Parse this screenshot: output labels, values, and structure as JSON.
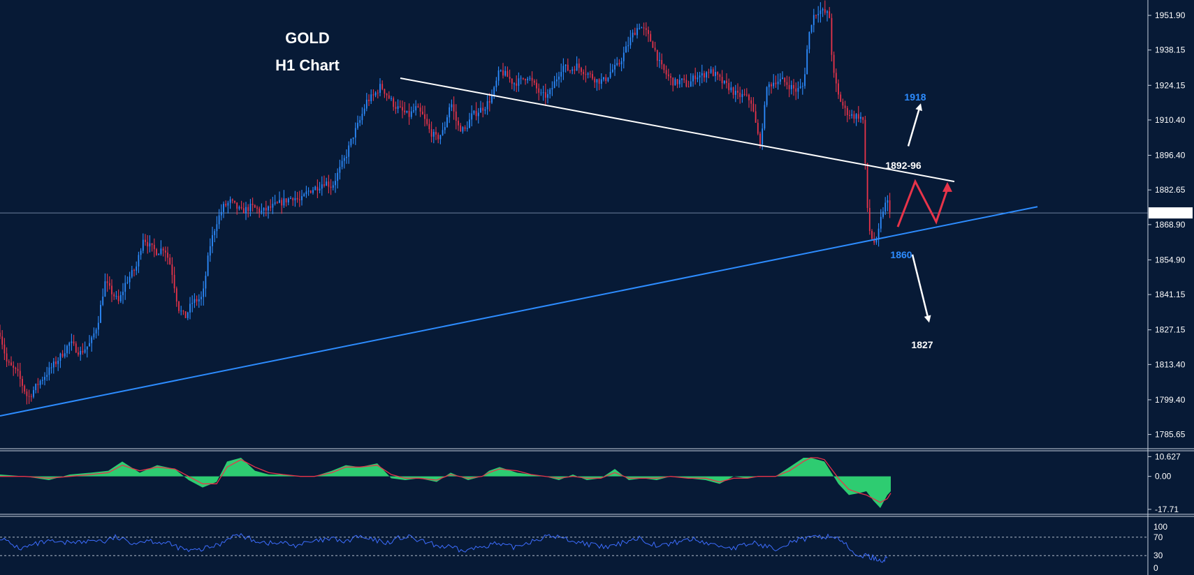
{
  "title": {
    "line1": "GOLD",
    "line2": "H1 Chart"
  },
  "colors": {
    "background": "#071a36",
    "bull_candle": "#2d8cff",
    "bear_candle": "#e8344a",
    "resistance_line": "#ffffff",
    "support_line": "#2d8cff",
    "macd_histogram": "#2ecc71",
    "macd_signal": "#e8344a",
    "rsi_line": "#3d6dff"
  },
  "annotations": {
    "target_up": "1918",
    "resistance_zone": "1892-96",
    "support_level": "1860",
    "target_down": "1827"
  },
  "chart_data": [
    {
      "type": "candlestick",
      "title": "GOLD H1 Chart",
      "y_axis": {
        "ticks": [
          "1951.90",
          "1938.15",
          "1924.15",
          "1910.40",
          "1896.40",
          "1882.65",
          "1868.90",
          "1854.90",
          "1841.15",
          "1827.15",
          "1813.40",
          "1799.40",
          "1785.65"
        ],
        "ylim": [
          1780,
          1958
        ]
      },
      "current_price": "1873.54",
      "x_range": [
        0,
        1275
      ],
      "close_path": [
        [
          0,
          1826
        ],
        [
          10,
          1814
        ],
        [
          25,
          1810
        ],
        [
          40,
          1800
        ],
        [
          55,
          1806
        ],
        [
          70,
          1811
        ],
        [
          85,
          1816
        ],
        [
          100,
          1822
        ],
        [
          115,
          1818
        ],
        [
          130,
          1822
        ],
        [
          140,
          1830
        ],
        [
          150,
          1846
        ],
        [
          160,
          1842
        ],
        [
          170,
          1838
        ],
        [
          180,
          1846
        ],
        [
          195,
          1852
        ],
        [
          205,
          1864
        ],
        [
          215,
          1860
        ],
        [
          225,
          1858
        ],
        [
          235,
          1860
        ],
        [
          245,
          1852
        ],
        [
          255,
          1836
        ],
        [
          265,
          1832
        ],
        [
          275,
          1838
        ],
        [
          290,
          1840
        ],
        [
          300,
          1860
        ],
        [
          310,
          1870
        ],
        [
          320,
          1876
        ],
        [
          330,
          1878
        ],
        [
          345,
          1874
        ],
        [
          360,
          1876
        ],
        [
          375,
          1874
        ],
        [
          390,
          1876
        ],
        [
          405,
          1878
        ],
        [
          420,
          1880
        ],
        [
          430,
          1878
        ],
        [
          440,
          1882
        ],
        [
          455,
          1884
        ],
        [
          465,
          1886
        ],
        [
          475,
          1884
        ],
        [
          485,
          1890
        ],
        [
          495,
          1896
        ],
        [
          505,
          1904
        ],
        [
          515,
          1910
        ],
        [
          525,
          1918
        ],
        [
          535,
          1920
        ],
        [
          545,
          1924
        ],
        [
          555,
          1920
        ],
        [
          565,
          1916
        ],
        [
          575,
          1914
        ],
        [
          585,
          1912
        ],
        [
          595,
          1915
        ],
        [
          605,
          1912
        ],
        [
          615,
          1906
        ],
        [
          625,
          1903
        ],
        [
          635,
          1906
        ],
        [
          645,
          1918
        ],
        [
          655,
          1908
        ],
        [
          665,
          1906
        ],
        [
          675,
          1912
        ],
        [
          685,
          1914
        ],
        [
          695,
          1916
        ],
        [
          705,
          1920
        ],
        [
          715,
          1930
        ],
        [
          725,
          1928
        ],
        [
          735,
          1925
        ],
        [
          745,
          1926
        ],
        [
          755,
          1928
        ],
        [
          765,
          1924
        ],
        [
          775,
          1920
        ],
        [
          785,
          1920
        ],
        [
          795,
          1926
        ],
        [
          805,
          1932
        ],
        [
          815,
          1930
        ],
        [
          825,
          1932
        ],
        [
          835,
          1930
        ],
        [
          845,
          1928
        ],
        [
          855,
          1926
        ],
        [
          865,
          1926
        ],
        [
          875,
          1930
        ],
        [
          885,
          1932
        ],
        [
          895,
          1938
        ],
        [
          905,
          1944
        ],
        [
          915,
          1948
        ],
        [
          925,
          1945
        ],
        [
          935,
          1940
        ],
        [
          945,
          1932
        ],
        [
          955,
          1928
        ],
        [
          965,
          1925
        ],
        [
          975,
          1926
        ],
        [
          985,
          1924
        ],
        [
          995,
          1928
        ],
        [
          1005,
          1928
        ],
        [
          1015,
          1930
        ],
        [
          1025,
          1928
        ],
        [
          1035,
          1925
        ],
        [
          1045,
          1923
        ],
        [
          1055,
          1920
        ],
        [
          1065,
          1920
        ],
        [
          1075,
          1918
        ],
        [
          1085,
          1904
        ],
        [
          1090,
          1901
        ],
        [
          1095,
          1920
        ],
        [
          1100,
          1924
        ],
        [
          1110,
          1926
        ],
        [
          1120,
          1926
        ],
        [
          1130,
          1924
        ],
        [
          1140,
          1922
        ],
        [
          1150,
          1924
        ],
        [
          1155,
          1938
        ],
        [
          1160,
          1948
        ],
        [
          1165,
          1952
        ],
        [
          1172,
          1954
        ],
        [
          1180,
          1953
        ],
        [
          1187,
          1952
        ],
        [
          1192,
          1930
        ],
        [
          1200,
          1920
        ],
        [
          1210,
          1914
        ],
        [
          1220,
          1912
        ],
        [
          1230,
          1912
        ],
        [
          1236,
          1910
        ],
        [
          1240,
          1880
        ],
        [
          1245,
          1866
        ],
        [
          1250,
          1862
        ],
        [
          1255,
          1862
        ],
        [
          1260,
          1870
        ],
        [
          1265,
          1876
        ],
        [
          1270,
          1878
        ],
        [
          1275,
          1874
        ]
      ],
      "trendlines": [
        {
          "name": "resistance",
          "from": [
            573,
            1927
          ],
          "to": [
            1366,
            1886
          ]
        },
        {
          "name": "support",
          "from": [
            0,
            1793
          ],
          "to": [
            1485,
            1876
          ]
        }
      ],
      "projection": {
        "path": [
          [
            1285,
            1868
          ],
          [
            1310,
            1886
          ],
          [
            1340,
            1870
          ],
          [
            1356,
            1883
          ]
        ]
      },
      "arrows": [
        {
          "label": "1918",
          "from": [
            1300,
            1900
          ],
          "to": [
            1318,
            1917
          ]
        },
        {
          "label": "1827",
          "from": [
            1306,
            1857
          ],
          "to": [
            1330,
            1830
          ]
        }
      ]
    },
    {
      "type": "area",
      "indicator": "MACD",
      "y_axis": {
        "ticks": [
          "10.627",
          "0.00",
          "-17.71"
        ],
        "ylim": [
          -18.5,
          11.5
        ]
      },
      "x": [
        0,
        35,
        70,
        100,
        130,
        155,
        175,
        200,
        225,
        250,
        270,
        290,
        310,
        325,
        345,
        365,
        385,
        405,
        430,
        450,
        475,
        495,
        515,
        540,
        560,
        580,
        600,
        625,
        645,
        670,
        690,
        700,
        715,
        740,
        760,
        780,
        800,
        820,
        840,
        860,
        880,
        900,
        920,
        940,
        960,
        985,
        1010,
        1030,
        1050,
        1070,
        1085,
        1095,
        1110,
        1130,
        1150,
        1160,
        1170,
        1180,
        1190,
        1200,
        1215,
        1230,
        1240,
        1250,
        1260,
        1270,
        1275
      ],
      "values": [
        1,
        0,
        -2,
        1,
        2,
        3,
        8,
        2,
        6,
        4,
        -2,
        -6,
        -3,
        8,
        10,
        3,
        1,
        1,
        0,
        0,
        3,
        6,
        5,
        7,
        -1,
        -2,
        -1,
        -3,
        2,
        -2,
        0,
        3,
        5,
        2,
        1,
        0,
        -2,
        1,
        -2,
        -1,
        4,
        -2,
        -1,
        -2,
        0,
        -1,
        -2,
        -4,
        0,
        -1,
        0,
        0,
        0,
        5,
        10,
        10,
        9,
        8,
        2,
        -4,
        -10,
        -9,
        -8,
        -13,
        -17,
        -10,
        -8
      ],
      "signal": [
        0,
        0,
        -1,
        0,
        1,
        2,
        6,
        3,
        5,
        4,
        0,
        -4,
        -4,
        5,
        9,
        5,
        2,
        1,
        0,
        0,
        2,
        5,
        5,
        6,
        1,
        -1,
        -1,
        -2,
        1,
        -1,
        0,
        2,
        4,
        3,
        1,
        0,
        -1,
        0,
        -1,
        -1,
        2,
        -1,
        -1,
        -1,
        0,
        -1,
        -1,
        -3,
        -1,
        -1,
        0,
        0,
        0,
        3,
        8,
        10,
        10,
        9,
        4,
        -1,
        -7,
        -9,
        -10,
        -12,
        -14,
        -12,
        -9
      ]
    },
    {
      "type": "line",
      "indicator": "RSI",
      "y_axis": {
        "ticks": [
          "100",
          "70",
          "30",
          "0"
        ],
        "ylim": [
          0,
          100
        ]
      },
      "levels": [
        70,
        30
      ],
      "x": [
        0,
        15,
        30,
        45,
        60,
        75,
        90,
        105,
        120,
        135,
        150,
        165,
        180,
        195,
        210,
        225,
        240,
        255,
        270,
        285,
        300,
        315,
        330,
        345,
        360,
        375,
        390,
        405,
        420,
        435,
        450,
        465,
        480,
        495,
        510,
        525,
        540,
        555,
        570,
        585,
        600,
        615,
        630,
        645,
        660,
        675,
        690,
        705,
        720,
        735,
        750,
        765,
        780,
        795,
        810,
        825,
        840,
        855,
        870,
        885,
        900,
        915,
        930,
        945,
        960,
        975,
        990,
        1005,
        1020,
        1035,
        1050,
        1065,
        1080,
        1095,
        1110,
        1125,
        1140,
        1155,
        1170,
        1185,
        1195,
        1205,
        1220,
        1235,
        1245,
        1255,
        1265,
        1270
      ],
      "values": [
        70,
        55,
        45,
        52,
        58,
        60,
        56,
        62,
        58,
        65,
        60,
        70,
        62,
        58,
        64,
        60,
        56,
        48,
        40,
        42,
        48,
        55,
        72,
        74,
        65,
        60,
        56,
        58,
        52,
        56,
        60,
        64,
        66,
        58,
        72,
        66,
        62,
        58,
        68,
        70,
        62,
        56,
        50,
        48,
        40,
        44,
        50,
        56,
        52,
        48,
        56,
        64,
        70,
        72,
        66,
        60,
        56,
        50,
        48,
        54,
        64,
        68,
        58,
        50,
        56,
        62,
        66,
        60,
        54,
        50,
        46,
        52,
        58,
        50,
        46,
        56,
        64,
        66,
        70,
        72,
        70,
        64,
        35,
        30,
        28,
        22,
        20,
        26
      ]
    }
  ]
}
